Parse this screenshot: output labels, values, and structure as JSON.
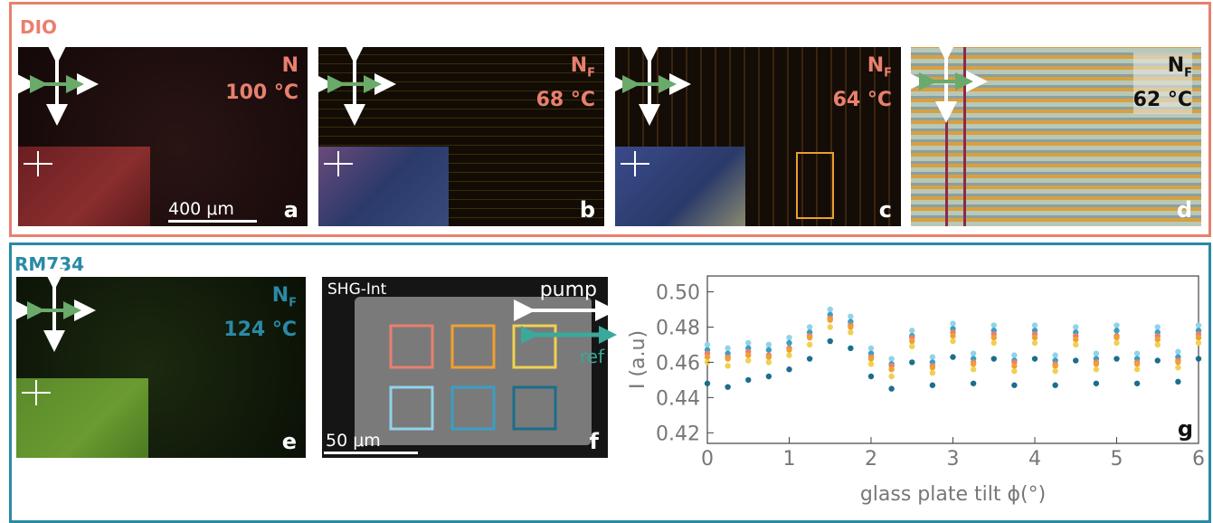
{
  "dio": {
    "label": "DIO",
    "scale_bar": "400 μm",
    "panels": [
      {
        "phase": "N",
        "temperature": "100 °C",
        "letter": "a"
      },
      {
        "phase": "N",
        "phase_subscript": "F",
        "temperature": "68 °C",
        "letter": "b"
      },
      {
        "phase": "N",
        "phase_subscript": "F",
        "temperature": "64 °C",
        "letter": "c"
      },
      {
        "phase": "N",
        "phase_subscript": "F",
        "temperature": "62 °C",
        "letter": "d"
      }
    ]
  },
  "rm734": {
    "label": "RM734",
    "panel_e": {
      "phase": "N",
      "phase_subscript": "F",
      "temperature": "124 °C",
      "letter": "e"
    },
    "panel_f": {
      "title": "SHG-Int",
      "pump": "pump",
      "ref": "ref",
      "scale_bar": "50 μm",
      "letter": "f"
    }
  },
  "chart_data": {
    "type": "scatter",
    "annotation": "g",
    "x_label": "glass plate tilt ϕ(°)",
    "y_label": "I (a.u)",
    "x": [
      0,
      0.25,
      0.5,
      0.75,
      1,
      1.25,
      1.5,
      1.75,
      2,
      2.25,
      2.5,
      2.75,
      3,
      3.25,
      3.5,
      3.75,
      4,
      4.25,
      4.5,
      4.75,
      5,
      5.25,
      5.5,
      5.75,
      6
    ],
    "series": [
      {
        "color": "#8fd3ea",
        "values": [
          0.47,
          0.468,
          0.471,
          0.47,
          0.474,
          0.48,
          0.49,
          0.486,
          0.468,
          0.462,
          0.478,
          0.463,
          0.482,
          0.465,
          0.481,
          0.464,
          0.481,
          0.464,
          0.48,
          0.465,
          0.481,
          0.465,
          0.48,
          0.466,
          0.481
        ]
      },
      {
        "color": "#3a9fc2",
        "values": [
          0.467,
          0.465,
          0.468,
          0.467,
          0.471,
          0.477,
          0.487,
          0.483,
          0.465,
          0.459,
          0.475,
          0.46,
          0.479,
          0.462,
          0.478,
          0.461,
          0.478,
          0.461,
          0.477,
          0.462,
          0.478,
          0.462,
          0.477,
          0.463,
          0.478
        ]
      },
      {
        "color": "#e8806e",
        "values": [
          0.465,
          0.463,
          0.466,
          0.464,
          0.468,
          0.475,
          0.485,
          0.481,
          0.463,
          0.458,
          0.474,
          0.458,
          0.477,
          0.46,
          0.476,
          0.46,
          0.476,
          0.459,
          0.475,
          0.46,
          0.475,
          0.46,
          0.475,
          0.461,
          0.476
        ]
      },
      {
        "color": "#f0a030",
        "values": [
          0.463,
          0.462,
          0.464,
          0.463,
          0.467,
          0.474,
          0.484,
          0.48,
          0.462,
          0.456,
          0.472,
          0.457,
          0.475,
          0.459,
          0.474,
          0.458,
          0.474,
          0.458,
          0.473,
          0.459,
          0.474,
          0.459,
          0.473,
          0.46,
          0.474
        ]
      },
      {
        "color": "#f0d050",
        "values": [
          0.46,
          0.458,
          0.461,
          0.46,
          0.464,
          0.47,
          0.48,
          0.477,
          0.459,
          0.452,
          0.469,
          0.454,
          0.472,
          0.456,
          0.471,
          0.455,
          0.471,
          0.455,
          0.47,
          0.456,
          0.471,
          0.456,
          0.47,
          0.457,
          0.471
        ]
      },
      {
        "color": "#1b6e8c",
        "values": [
          0.448,
          0.446,
          0.45,
          0.452,
          0.456,
          0.462,
          0.472,
          0.468,
          0.452,
          0.445,
          0.46,
          0.447,
          0.463,
          0.448,
          0.462,
          0.447,
          0.462,
          0.447,
          0.461,
          0.448,
          0.462,
          0.448,
          0.461,
          0.449,
          0.462
        ]
      }
    ],
    "xlim": [
      0,
      6
    ],
    "ylim": [
      0.414,
      0.509
    ],
    "xticks": [
      0,
      1,
      2,
      3,
      4,
      5,
      6
    ],
    "yticks": [
      0.42,
      0.44,
      0.46,
      0.48,
      {
        "value": 0.5,
        "label": "0.50"
      }
    ]
  }
}
